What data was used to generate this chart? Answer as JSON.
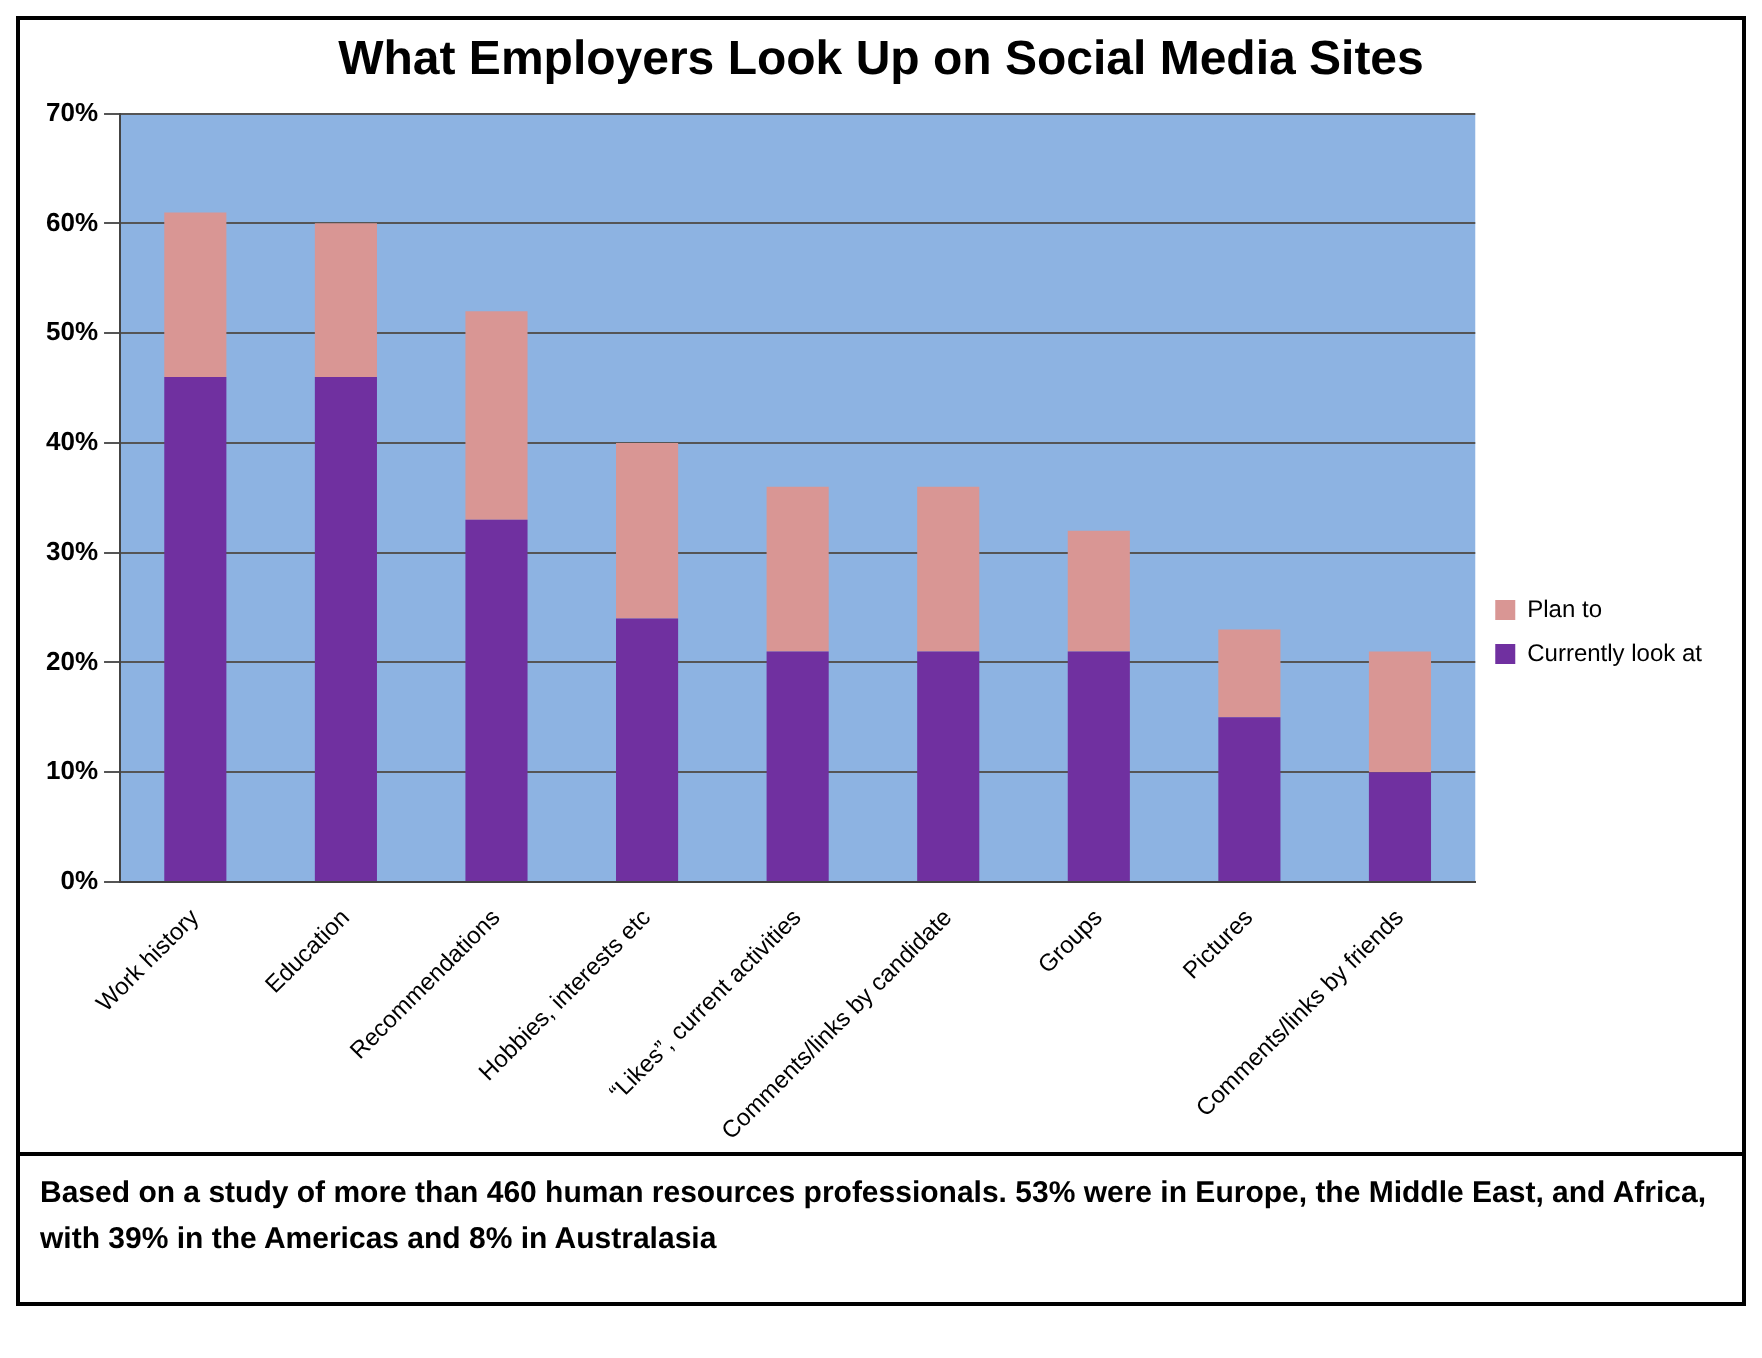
{
  "chart_data": {
    "type": "bar",
    "title": "What Employers Look Up on Social Media Sites",
    "categories": [
      "Work history",
      "Education",
      "Recommendations",
      "Hobbies, interests etc",
      "“Likes”, current activities",
      "Comments/links by candidate",
      "Groups",
      "Pictures",
      "Comments/links by friends"
    ],
    "series": [
      {
        "name": "Currently look at",
        "color": "#7030a0",
        "values": [
          46,
          46,
          33,
          24,
          21,
          21,
          21,
          15,
          10
        ]
      },
      {
        "name": "Plan to",
        "color": "#d99694",
        "values": [
          15,
          14,
          19,
          16,
          15,
          15,
          11,
          8,
          11
        ]
      }
    ],
    "stacked": true,
    "ylim": [
      0,
      70
    ],
    "yticks": [
      {
        "value": 0,
        "label": "0%"
      },
      {
        "value": 10,
        "label": "10%"
      },
      {
        "value": 20,
        "label": "20%"
      },
      {
        "value": 30,
        "label": "30%"
      },
      {
        "value": 40,
        "label": "40%"
      },
      {
        "value": 50,
        "label": "50%"
      },
      {
        "value": 60,
        "label": "60%"
      },
      {
        "value": 70,
        "label": "70%"
      }
    ],
    "grid": "y",
    "legend": "right",
    "annotations": [
      "Based on a study of more than 460 human resources professionals. 53% were in Europe, the Middle East, and Africa, with 39% in the Americas and 8% in Australasia"
    ]
  }
}
